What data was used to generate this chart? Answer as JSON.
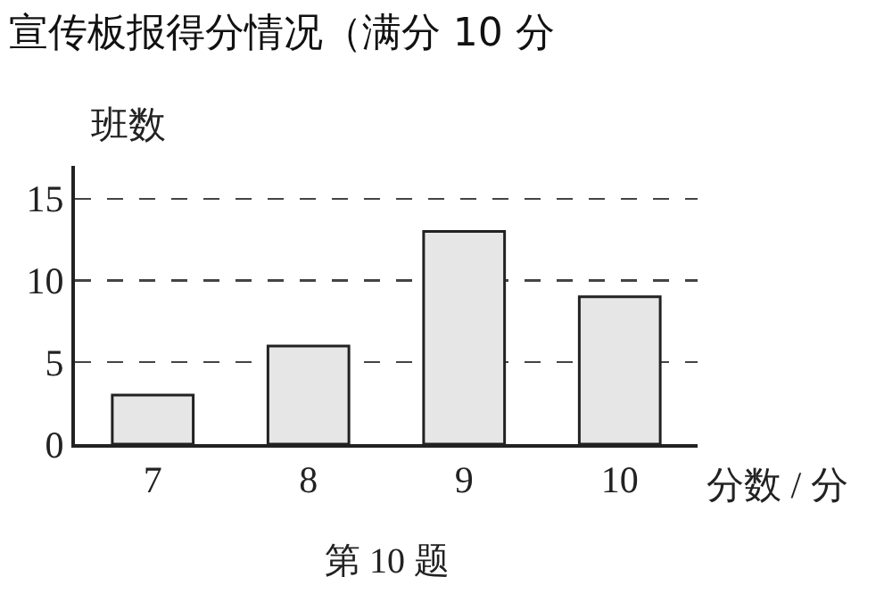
{
  "chart_data": {
    "type": "bar",
    "title": "宣传板报得分情况（满分 10 分",
    "categories": [
      "7",
      "8",
      "9",
      "10"
    ],
    "values": [
      3,
      6,
      13,
      9
    ],
    "color": "#e6e6e6",
    "xlabel": "分数 / 分",
    "ylabel": "班数",
    "ylim": [
      0,
      17
    ],
    "yticks": [
      0,
      5,
      10,
      15
    ],
    "grid": "y",
    "annotations": [
      "第 10 题"
    ]
  }
}
